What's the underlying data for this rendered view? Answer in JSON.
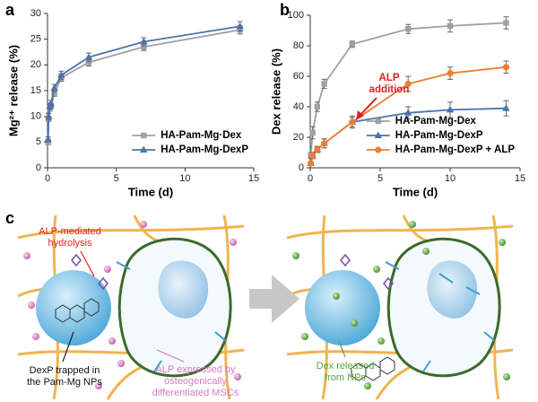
{
  "panel_labels": [
    "a",
    "b",
    "c"
  ],
  "chart_data": [
    {
      "type": "line",
      "xlabel": "Time (d)",
      "ylabel": "Mg²⁺ release (%)",
      "xlim": [
        0,
        15
      ],
      "xticks": [
        0,
        5,
        10,
        15
      ],
      "ylim": [
        0,
        30
      ],
      "yticks": [
        0,
        5,
        10,
        15,
        20,
        25,
        30
      ],
      "legend": "lower right",
      "series": [
        {
          "name": "HA-Pam-Mg·Dex",
          "color": "#a0a0a0",
          "marker": "square",
          "x": [
            0.04,
            0.08,
            0.17,
            0.25,
            0.5,
            1,
            3,
            7,
            14
          ],
          "values": [
            5,
            9.5,
            11.5,
            12,
            14.5,
            17.5,
            20.5,
            23.5,
            26.8
          ],
          "errors": [
            0.5,
            0.5,
            0.5,
            0.5,
            0.6,
            0.7,
            0.7,
            0.7,
            0.8
          ]
        },
        {
          "name": "HA-Pam-Mg-DexP",
          "color": "#4a72b0",
          "marker": "triangle",
          "x": [
            0.04,
            0.08,
            0.17,
            0.25,
            0.5,
            1,
            3,
            7,
            14
          ],
          "values": [
            5.5,
            10,
            12,
            12.5,
            15.5,
            18,
            21.5,
            24.5,
            27.5
          ],
          "errors": [
            0.5,
            0.6,
            0.6,
            0.6,
            0.7,
            0.8,
            0.8,
            0.8,
            0.9
          ]
        }
      ]
    },
    {
      "type": "line",
      "xlabel": "Time (d)",
      "ylabel": "Dex release (%)",
      "xlim": [
        0,
        15
      ],
      "xticks": [
        0,
        5,
        10,
        15
      ],
      "ylim": [
        0,
        100
      ],
      "yticks": [
        0,
        20,
        40,
        60,
        80,
        100
      ],
      "legend": "lower right",
      "annotation": {
        "text": [
          "ALP",
          "addition"
        ],
        "color": "#e02020"
      },
      "series": [
        {
          "name": "HA-Pam-Mg-Dex",
          "color": "#a0a0a0",
          "marker": "square",
          "x": [
            0.04,
            0.17,
            0.5,
            1,
            3,
            7,
            10,
            14
          ],
          "values": [
            8,
            23,
            40,
            55,
            81,
            91,
            93,
            95
          ],
          "errors": [
            2,
            4,
            3,
            3,
            2,
            3,
            4,
            4
          ]
        },
        {
          "name": "HA-Pam-Mg-DexP",
          "color": "#4a72b0",
          "marker": "triangle",
          "x": [
            0.04,
            0.17,
            0.5,
            1,
            3,
            7,
            10,
            14
          ],
          "values": [
            3,
            8,
            12,
            16,
            30,
            36,
            38,
            39
          ],
          "errors": [
            1,
            2,
            2,
            3,
            3,
            4,
            5,
            5
          ]
        },
        {
          "name": "HA-Pam-Mg-DexP + ALP",
          "color": "#ee7d31",
          "marker": "circle",
          "x": [
            0.04,
            0.17,
            0.5,
            1,
            3,
            7,
            10,
            14
          ],
          "values": [
            3,
            8,
            12,
            16,
            30,
            55,
            62,
            66
          ],
          "errors": [
            1,
            2,
            2,
            3,
            4,
            5,
            4,
            4
          ]
        }
      ]
    }
  ],
  "panel_c": {
    "hydrolysis": [
      "ALP-mediated",
      "hydrolysis"
    ],
    "trapped": [
      "DexP trapped in",
      "the Pam-Mg NPs"
    ],
    "expressed": [
      "ALP  expressed by",
      "osteogenically",
      "differentiated MSCs"
    ],
    "released": [
      "Dex released",
      "from NPs"
    ]
  }
}
